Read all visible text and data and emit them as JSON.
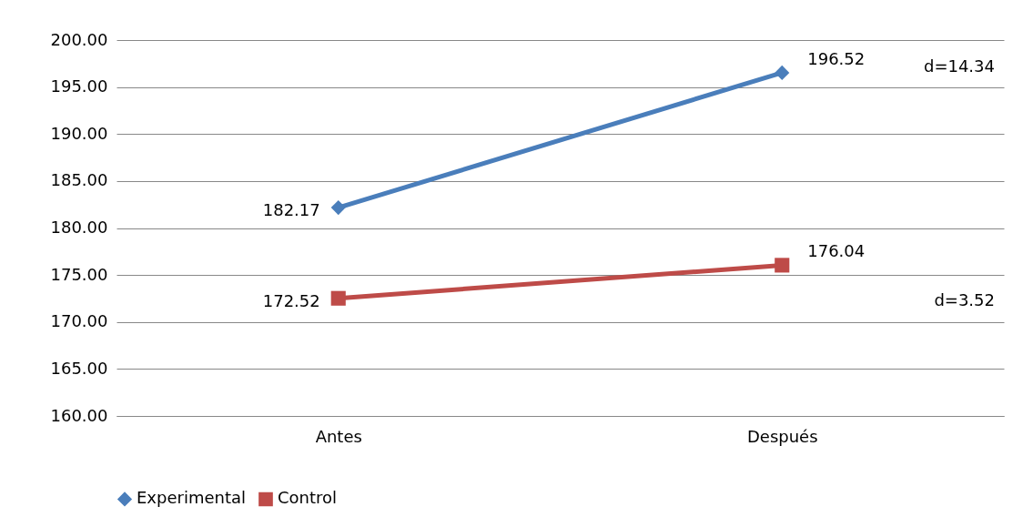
{
  "chart_data": {
    "type": "line",
    "categories": [
      "Antes",
      "Después"
    ],
    "series": [
      {
        "name": "Experimental",
        "color": "#4a7ebb",
        "values": [
          182.17,
          196.52
        ],
        "marker": "diamond"
      },
      {
        "name": "Control",
        "color": "#be4b48",
        "values": [
          172.52,
          176.04
        ],
        "marker": "square"
      }
    ],
    "ylim": [
      160,
      200
    ],
    "yticks": [
      {
        "value": 160,
        "label": "160.00"
      },
      {
        "value": 165,
        "label": "165.00"
      },
      {
        "value": 170,
        "label": "170.00"
      },
      {
        "value": 175,
        "label": "175.00"
      },
      {
        "value": 180,
        "label": "180.00"
      },
      {
        "value": 185,
        "label": "185.00"
      },
      {
        "value": 190,
        "label": "190.00"
      },
      {
        "value": 195,
        "label": "195.00"
      },
      {
        "value": 200,
        "label": "200.00"
      }
    ],
    "grid": "y",
    "legend": "bottom",
    "data_labels": true,
    "line_style": "solid",
    "annotations": [
      "d=14.34",
      "d=3.52"
    ]
  }
}
